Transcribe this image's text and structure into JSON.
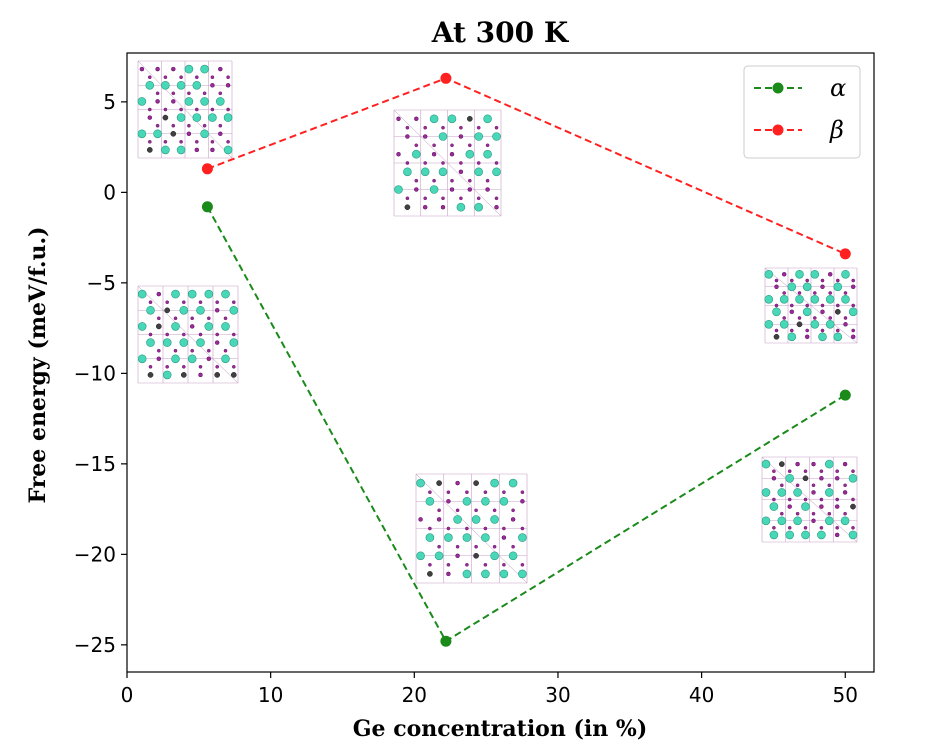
{
  "chart_data": {
    "type": "line",
    "title": "At 300 K",
    "xlabel": "Ge concentration (in %)",
    "ylabel": "Free energy (meV/f.u.)",
    "xlim": [
      0,
      52
    ],
    "ylim": [
      -26.5,
      7.7
    ],
    "xticks": [
      0,
      10,
      20,
      30,
      40,
      50
    ],
    "yticks": [
      5,
      0,
      -5,
      -10,
      -15,
      -20,
      -25
    ],
    "ytick_labels": [
      "5",
      "0",
      "−5",
      "−10",
      "−15",
      "−20",
      "−25"
    ],
    "legend_position": "top-right",
    "series": [
      {
        "name": "α",
        "color": "#1a8a1a",
        "x": [
          5.6,
          22.2,
          50.0
        ],
        "y": [
          -0.8,
          -24.8,
          -11.2
        ]
      },
      {
        "name": "β",
        "color": "#ff2020",
        "x": [
          5.6,
          22.2,
          50.0
        ],
        "y": [
          1.3,
          6.3,
          -3.4
        ]
      }
    ],
    "insets": [
      {
        "name": "beta-5.6-structure",
        "type": "crystal",
        "series": "β",
        "x": 5.6
      },
      {
        "name": "beta-22.2-structure",
        "type": "crystal",
        "series": "β",
        "x": 22.2
      },
      {
        "name": "beta-50-structure",
        "type": "crystal",
        "series": "β",
        "x": 50.0
      },
      {
        "name": "alpha-5.6-structure",
        "type": "crystal",
        "series": "α",
        "x": 5.6
      },
      {
        "name": "alpha-22.2-structure",
        "type": "crystal",
        "series": "α",
        "x": 22.2
      },
      {
        "name": "alpha-50-structure",
        "type": "crystal",
        "series": "α",
        "x": 50.0
      }
    ],
    "atom_colors": {
      "large": "#48d8b8",
      "small": "#9a2a9a",
      "dark": "#404040"
    }
  }
}
